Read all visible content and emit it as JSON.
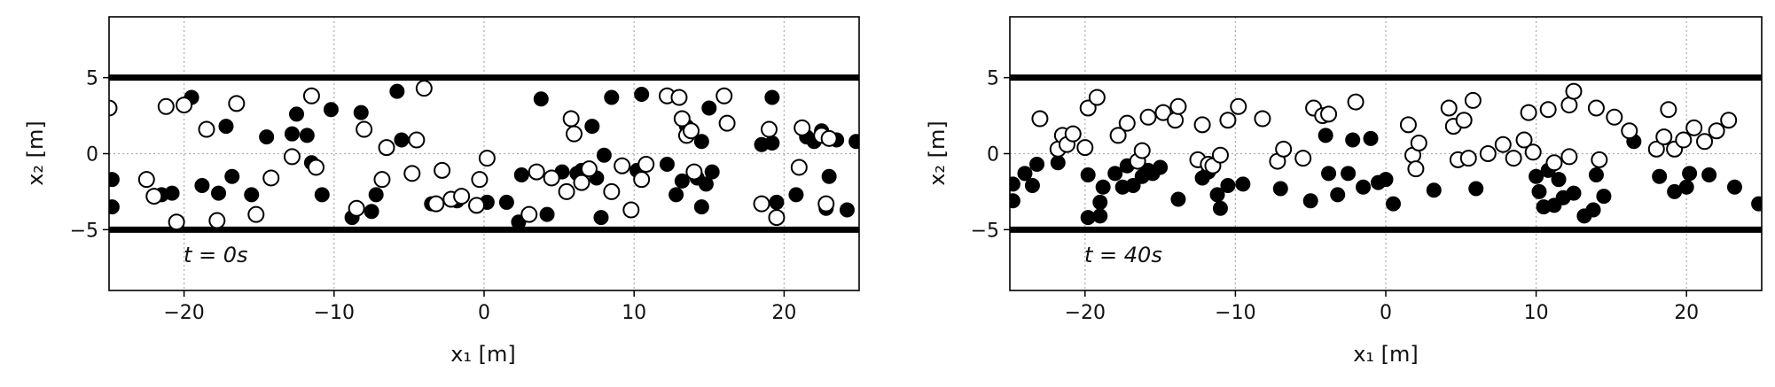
{
  "chart_data": [
    {
      "type": "scatter",
      "xlabel": "x₁ [m]",
      "ylabel": "x₂ [m]",
      "xlim": [
        -25,
        25
      ],
      "ylim": [
        -9,
        9
      ],
      "xticks": [
        -20,
        -10,
        0,
        10,
        20
      ],
      "yticks": [
        -5,
        0,
        5
      ],
      "xtick_labels": [
        "−20",
        "−10",
        "0",
        "10",
        "20"
      ],
      "ytick_labels": [
        "−5",
        "0",
        "5"
      ],
      "grid": true,
      "walls": [
        5,
        -5
      ],
      "annotation": "t = 0s",
      "series": [
        {
          "marker": "filled",
          "color": "#000000",
          "points": [
            [
              -24.8,
              -1.7
            ],
            [
              -24.8,
              -3.5
            ],
            [
              -21.5,
              -2.7
            ],
            [
              -20.8,
              -2.6
            ],
            [
              -19.5,
              3.7
            ],
            [
              -18.8,
              -2.1
            ],
            [
              -17.7,
              -2.6
            ],
            [
              -17.2,
              1.8
            ],
            [
              -16.8,
              -1.5
            ],
            [
              -15.5,
              -2.7
            ],
            [
              -14.5,
              1.1
            ],
            [
              -12.8,
              1.3
            ],
            [
              -12.5,
              2.6
            ],
            [
              -11.8,
              1.2
            ],
            [
              -11.5,
              -0.6
            ],
            [
              -10.8,
              -2.7
            ],
            [
              -10.2,
              2.9
            ],
            [
              -8.8,
              -4.2
            ],
            [
              -8.2,
              2.7
            ],
            [
              -7.5,
              -3.8
            ],
            [
              -7.2,
              -2.7
            ],
            [
              -5.8,
              4.1
            ],
            [
              -5.5,
              0.9
            ],
            [
              -3.5,
              -3.3
            ],
            [
              -1.8,
              -3.1
            ],
            [
              0.2,
              -3.2
            ],
            [
              1.5,
              -3.2
            ],
            [
              2.3,
              -4.5
            ],
            [
              2.5,
              -1.4
            ],
            [
              3.8,
              3.6
            ],
            [
              4.2,
              -4.0
            ],
            [
              5.2,
              -1.2
            ],
            [
              6.2,
              -1.3
            ],
            [
              6.5,
              -1.1
            ],
            [
              7.2,
              1.8
            ],
            [
              7.5,
              -1.6
            ],
            [
              7.8,
              -4.2
            ],
            [
              8.0,
              -0.1
            ],
            [
              8.5,
              3.7
            ],
            [
              10.2,
              -1.1
            ],
            [
              10.5,
              3.9
            ],
            [
              12.2,
              -0.7
            ],
            [
              12.8,
              -2.7
            ],
            [
              13.2,
              -1.8
            ],
            [
              13.5,
              1.8
            ],
            [
              14.2,
              -1.6
            ],
            [
              14.5,
              0.8
            ],
            [
              14.5,
              -3.5
            ],
            [
              14.8,
              -2.0
            ],
            [
              15.0,
              3.0
            ],
            [
              15.2,
              -1.2
            ],
            [
              18.5,
              0.6
            ],
            [
              19.2,
              3.7
            ],
            [
              19.2,
              0.7
            ],
            [
              19.5,
              -3.2
            ],
            [
              20.8,
              -2.7
            ],
            [
              21.5,
              1.1
            ],
            [
              22.0,
              0.8
            ],
            [
              22.5,
              1.5
            ],
            [
              22.8,
              -3.6
            ],
            [
              23.0,
              -1.5
            ],
            [
              23.5,
              0.9
            ],
            [
              24.2,
              -3.7
            ],
            [
              24.8,
              0.8
            ]
          ]
        },
        {
          "marker": "open",
          "color": "#000000",
          "points": [
            [
              -25.0,
              3.0
            ],
            [
              -22.5,
              -1.7
            ],
            [
              -22.0,
              -2.8
            ],
            [
              -21.2,
              3.1
            ],
            [
              -20.5,
              -4.5
            ],
            [
              -20.0,
              3.2
            ],
            [
              -18.5,
              1.6
            ],
            [
              -17.8,
              -4.4
            ],
            [
              -16.5,
              3.3
            ],
            [
              -15.2,
              -4.0
            ],
            [
              -14.2,
              -1.6
            ],
            [
              -12.8,
              -0.2
            ],
            [
              -11.5,
              3.8
            ],
            [
              -11.2,
              -0.9
            ],
            [
              -8.5,
              -3.6
            ],
            [
              -8.0,
              1.6
            ],
            [
              -6.5,
              0.4
            ],
            [
              -6.8,
              -1.7
            ],
            [
              -4.8,
              -1.3
            ],
            [
              -4.5,
              0.9
            ],
            [
              -4.0,
              4.3
            ],
            [
              -3.2,
              -3.3
            ],
            [
              -2.8,
              -1.1
            ],
            [
              -2.2,
              -3.0
            ],
            [
              -1.5,
              -2.8
            ],
            [
              -0.5,
              -3.4
            ],
            [
              -0.3,
              -1.7
            ],
            [
              0.2,
              -0.3
            ],
            [
              3.0,
              -4.0
            ],
            [
              3.5,
              -1.2
            ],
            [
              4.5,
              -1.6
            ],
            [
              5.5,
              -2.5
            ],
            [
              5.8,
              2.3
            ],
            [
              6.0,
              1.3
            ],
            [
              6.5,
              -1.9
            ],
            [
              7.0,
              -1.0
            ],
            [
              8.5,
              -2.5
            ],
            [
              9.2,
              -0.8
            ],
            [
              9.8,
              -3.7
            ],
            [
              10.5,
              -1.7
            ],
            [
              10.8,
              -0.7
            ],
            [
              12.2,
              3.8
            ],
            [
              13.0,
              3.7
            ],
            [
              13.2,
              2.3
            ],
            [
              13.5,
              1.2
            ],
            [
              13.8,
              1.5
            ],
            [
              14.0,
              -1.2
            ],
            [
              16.0,
              3.8
            ],
            [
              16.2,
              2.0
            ],
            [
              18.5,
              -3.3
            ],
            [
              19.0,
              1.6
            ],
            [
              19.5,
              -4.2
            ],
            [
              21.0,
              -0.9
            ],
            [
              21.2,
              1.7
            ],
            [
              22.5,
              1.2
            ],
            [
              22.8,
              -3.3
            ],
            [
              23.0,
              1.0
            ]
          ]
        }
      ]
    },
    {
      "type": "scatter",
      "xlabel": "x₁ [m]",
      "ylabel": "x₂ [m]",
      "xlim": [
        -25,
        25
      ],
      "ylim": [
        -9,
        9
      ],
      "xticks": [
        -20,
        -10,
        0,
        10,
        20
      ],
      "yticks": [
        -5,
        0,
        5
      ],
      "xtick_labels": [
        "−20",
        "−10",
        "0",
        "10",
        "20"
      ],
      "ytick_labels": [
        "−5",
        "0",
        "5"
      ],
      "grid": true,
      "walls": [
        5,
        -5
      ],
      "annotation": "t = 40s",
      "series": [
        {
          "marker": "filled",
          "color": "#000000",
          "points": [
            [
              -24.8,
              -2.0
            ],
            [
              -24.8,
              -3.1
            ],
            [
              -24.0,
              -1.3
            ],
            [
              -23.5,
              -2.1
            ],
            [
              -23.2,
              -0.7
            ],
            [
              -21.8,
              -0.6
            ],
            [
              -19.8,
              -1.4
            ],
            [
              -19.8,
              -4.2
            ],
            [
              -19.0,
              -4.1
            ],
            [
              -19.0,
              -3.2
            ],
            [
              -18.8,
              -2.2
            ],
            [
              -18.0,
              -1.3
            ],
            [
              -17.5,
              -2.2
            ],
            [
              -17.2,
              -0.8
            ],
            [
              -16.8,
              -2.1
            ],
            [
              -16.2,
              -1.5
            ],
            [
              -15.8,
              -1.1
            ],
            [
              -15.5,
              -1.3
            ],
            [
              -15.0,
              -0.9
            ],
            [
              -13.8,
              -3.0
            ],
            [
              -12.2,
              -1.6
            ],
            [
              -11.8,
              -1.2
            ],
            [
              -11.2,
              -2.7
            ],
            [
              -11.0,
              -3.6
            ],
            [
              -10.5,
              -2.1
            ],
            [
              -9.5,
              -2.0
            ],
            [
              -7.0,
              -2.3
            ],
            [
              -5.0,
              -3.1
            ],
            [
              -4.0,
              1.2
            ],
            [
              -3.8,
              -1.3
            ],
            [
              -3.2,
              -2.7
            ],
            [
              -2.5,
              -1.3
            ],
            [
              -2.2,
              0.9
            ],
            [
              -1.5,
              -2.2
            ],
            [
              -1.0,
              1.0
            ],
            [
              -0.5,
              -1.9
            ],
            [
              0.0,
              -1.7
            ],
            [
              0.5,
              -3.3
            ],
            [
              3.2,
              -2.4
            ],
            [
              6.0,
              -2.3
            ],
            [
              10.0,
              -1.5
            ],
            [
              10.2,
              -2.5
            ],
            [
              10.5,
              -3.5
            ],
            [
              10.8,
              -1.1
            ],
            [
              11.2,
              -3.4
            ],
            [
              11.5,
              -1.7
            ],
            [
              11.8,
              -2.9
            ],
            [
              12.5,
              -2.6
            ],
            [
              13.2,
              -4.1
            ],
            [
              13.8,
              -3.7
            ],
            [
              14.0,
              -1.4
            ],
            [
              14.5,
              -2.8
            ],
            [
              16.5,
              0.8
            ],
            [
              18.2,
              -1.5
            ],
            [
              19.2,
              -2.5
            ],
            [
              20.0,
              -2.2
            ],
            [
              20.2,
              -1.3
            ],
            [
              21.5,
              -1.4
            ],
            [
              23.2,
              -2.2
            ],
            [
              24.8,
              -3.3
            ]
          ]
        },
        {
          "marker": "open",
          "color": "#000000",
          "points": [
            [
              -23.0,
              2.3
            ],
            [
              -21.8,
              0.3
            ],
            [
              -21.5,
              1.2
            ],
            [
              -21.2,
              0.6
            ],
            [
              -20.8,
              1.3
            ],
            [
              -20.0,
              0.4
            ],
            [
              -19.8,
              3.0
            ],
            [
              -19.2,
              3.7
            ],
            [
              -17.8,
              1.2
            ],
            [
              -17.2,
              2.0
            ],
            [
              -16.5,
              -0.5
            ],
            [
              -16.2,
              0.2
            ],
            [
              -15.8,
              2.4
            ],
            [
              -14.8,
              2.7
            ],
            [
              -14.0,
              2.2
            ],
            [
              -13.8,
              3.1
            ],
            [
              -12.5,
              -0.4
            ],
            [
              -12.2,
              1.9
            ],
            [
              -11.8,
              -0.7
            ],
            [
              -11.5,
              -0.8
            ],
            [
              -11.0,
              -0.1
            ],
            [
              -10.5,
              2.2
            ],
            [
              -9.8,
              3.1
            ],
            [
              -8.2,
              2.3
            ],
            [
              -7.2,
              -0.5
            ],
            [
              -6.8,
              0.3
            ],
            [
              -4.8,
              3.0
            ],
            [
              -4.2,
              2.5
            ],
            [
              -3.8,
              2.6
            ],
            [
              -2.0,
              3.4
            ],
            [
              -5.5,
              -0.3
            ],
            [
              1.5,
              1.9
            ],
            [
              1.8,
              -0.1
            ],
            [
              2.0,
              -1.0
            ],
            [
              2.2,
              0.7
            ],
            [
              4.2,
              3.0
            ],
            [
              4.5,
              1.8
            ],
            [
              4.8,
              -0.4
            ],
            [
              5.2,
              2.2
            ],
            [
              5.5,
              -0.3
            ],
            [
              5.8,
              3.5
            ],
            [
              6.8,
              0.0
            ],
            [
              7.8,
              0.6
            ],
            [
              8.5,
              -0.3
            ],
            [
              9.2,
              0.9
            ],
            [
              9.5,
              2.7
            ],
            [
              9.8,
              0.1
            ],
            [
              10.8,
              2.9
            ],
            [
              11.2,
              -0.6
            ],
            [
              12.2,
              -0.2
            ],
            [
              12.2,
              3.2
            ],
            [
              12.5,
              4.1
            ],
            [
              14.0,
              3.0
            ],
            [
              14.2,
              -0.4
            ],
            [
              15.2,
              2.4
            ],
            [
              16.2,
              1.5
            ],
            [
              18.0,
              0.3
            ],
            [
              18.5,
              1.1
            ],
            [
              18.8,
              2.9
            ],
            [
              19.2,
              0.3
            ],
            [
              19.8,
              0.9
            ],
            [
              20.5,
              1.7
            ],
            [
              21.2,
              0.8
            ],
            [
              22.0,
              1.5
            ],
            [
              22.8,
              2.2
            ]
          ]
        }
      ]
    }
  ]
}
